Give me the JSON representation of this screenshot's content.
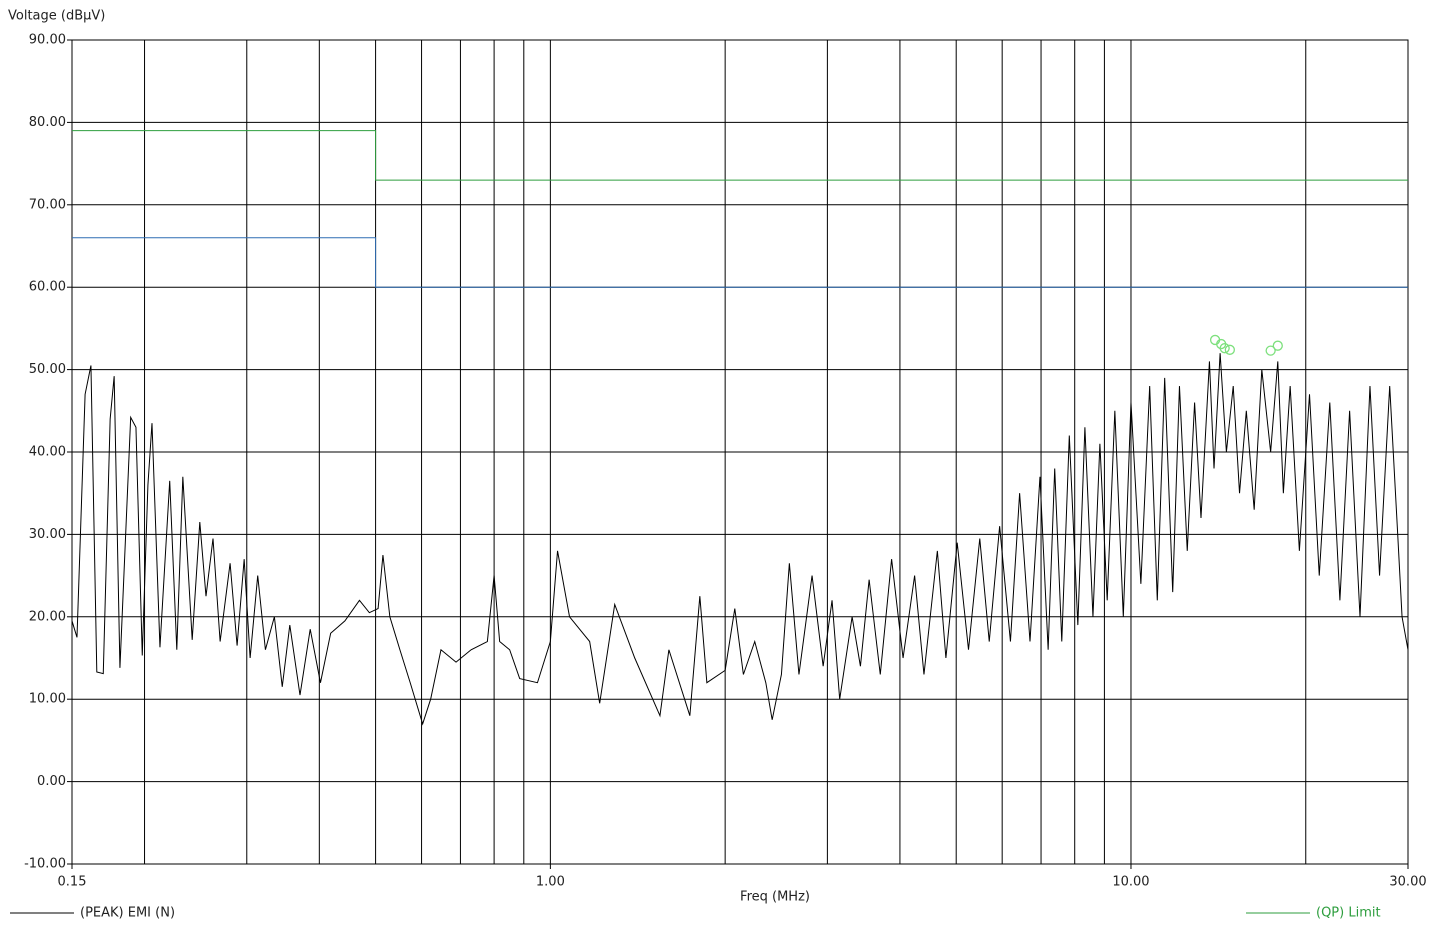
{
  "chart_data": {
    "type": "line",
    "ylabel": "Voltage (dBµV)",
    "xlabel": "Freq (MHz)",
    "xlog": true,
    "grid": true,
    "legend": "bottom",
    "xlim": [
      0.15,
      30
    ],
    "ylim": [
      -10,
      90
    ],
    "xticks": [
      0.15,
      {
        "value": 1,
        "label": "1.00"
      },
      {
        "value": 10,
        "label": "10.00"
      },
      {
        "value": 30,
        "label": "30.00"
      }
    ],
    "xgrid": [
      0.2,
      0.3,
      0.4,
      0.5,
      0.6,
      0.7,
      0.8,
      0.9,
      2,
      3,
      4,
      5,
      6,
      7,
      8,
      9,
      20
    ],
    "yticks": [
      {
        "value": -10,
        "label": "-10.00"
      },
      {
        "value": 0,
        "label": "0.00"
      },
      {
        "value": 10,
        "label": "10.00"
      },
      {
        "value": 20,
        "label": "20.00"
      },
      {
        "value": 30,
        "label": "30.00"
      },
      {
        "value": 40,
        "label": "40.00"
      },
      {
        "value": 50,
        "label": "50.00"
      },
      {
        "value": 60,
        "label": "60.00"
      },
      {
        "value": 70,
        "label": "70.00"
      },
      {
        "value": 80,
        "label": "80.00"
      },
      {
        "value": 90,
        "label": "90.00"
      }
    ],
    "series": [
      {
        "name": "(PEAK) EMI (N)",
        "color": "#000000",
        "x": [
          0.15,
          0.153,
          0.158,
          0.1617,
          0.1655,
          0.1698,
          0.1745,
          0.1773,
          0.1814,
          0.1893,
          0.1933,
          0.1982,
          0.2027,
          0.206,
          0.2126,
          0.221,
          0.2273,
          0.2328,
          0.2416,
          0.249,
          0.2552,
          0.2624,
          0.2699,
          0.2808,
          0.2887,
          0.2969,
          0.304,
          0.3133,
          0.323,
          0.3347,
          0.3453,
          0.3558,
          0.3705,
          0.3858,
          0.4018,
          0.4184,
          0.4427,
          0.469,
          0.4878,
          0.505,
          0.5148,
          0.5291,
          0.5506,
          0.5736,
          0.6026,
          0.622,
          0.648,
          0.6879,
          0.7303,
          0.7789,
          0.8,
          0.8178,
          0.8509,
          0.8854,
          0.95,
          1.0,
          1.0288,
          1.079,
          1.1686,
          1.216,
          1.2907,
          1.3974,
          1.5443,
          1.6,
          1.7387,
          1.809,
          1.86,
          2.0,
          2.078,
          2.15,
          2.249,
          2.35,
          2.41,
          2.5,
          2.58,
          2.68,
          2.823,
          2.95,
          3.056,
          3.15,
          3.309,
          3.42,
          3.54,
          3.7,
          3.87,
          4.05,
          4.24,
          4.4,
          4.64,
          4.8,
          5.02,
          5.25,
          5.49,
          5.7,
          5.94,
          6.2,
          6.43,
          6.7,
          6.97,
          7.2,
          7.39,
          7.6,
          7.83,
          8.1,
          8.33,
          8.6,
          8.84,
          9.1,
          9.38,
          9.7,
          10.0,
          10.4,
          10.77,
          11.1,
          11.43,
          11.8,
          12.12,
          12.5,
          12.87,
          13.2,
          13.65,
          13.9,
          14.24,
          14.6,
          15.0,
          15.38,
          15.8,
          16.3,
          16.8,
          17.4,
          17.9,
          18.3,
          18.8,
          19.5,
          20.3,
          21.1,
          22.0,
          22.9,
          23.8,
          24.8,
          25.8,
          26.8,
          27.9,
          28.8,
          29.3,
          30.0
        ],
        "values": [
          19.5,
          17.5,
          47,
          50.5,
          13.3,
          13.1,
          44,
          49.2,
          13.8,
          44.2,
          43,
          15.3,
          36,
          43.5,
          16.3,
          36.5,
          16,
          37,
          17.2,
          31.5,
          22.5,
          29.5,
          17,
          26.5,
          16.5,
          27,
          15,
          25,
          16,
          20,
          11.5,
          19,
          10.5,
          18.5,
          12,
          18,
          19.5,
          22,
          20.5,
          21,
          27.5,
          20,
          16,
          12,
          7,
          10,
          16,
          14.5,
          16,
          17,
          25,
          17,
          16,
          12.5,
          12,
          17,
          28,
          20,
          17,
          9.5,
          21.5,
          15,
          8,
          16,
          8,
          22.5,
          12,
          13.5,
          21,
          13,
          17,
          12,
          7.5,
          13,
          26.5,
          13,
          25,
          14,
          22,
          10,
          20,
          14,
          24.5,
          13,
          27,
          15,
          25,
          13,
          28,
          15,
          29,
          16,
          29.5,
          17,
          31,
          17,
          35,
          17,
          37,
          16,
          38,
          17,
          42,
          19,
          43,
          20,
          41,
          22,
          45,
          20,
          46,
          24,
          48,
          22,
          49,
          23,
          48,
          28,
          46,
          32,
          51,
          38,
          52,
          40,
          48,
          35,
          45,
          33,
          50,
          40,
          51,
          35,
          48,
          28,
          47,
          25,
          46,
          22,
          45,
          20,
          48,
          25,
          48,
          30,
          20,
          16
        ]
      },
      {
        "name": "(QP) Limit",
        "color": "#2e9e3e",
        "x": [
          0.15,
          0.5,
          0.5,
          30
        ],
        "values": [
          79,
          79,
          73,
          73
        ]
      },
      {
        "color": "#2f6db3",
        "x": [
          0.15,
          0.5,
          0.5,
          30
        ],
        "values": [
          66,
          66,
          60,
          60
        ]
      },
      {
        "type": "scatter",
        "color": "#7de07d",
        "x": [
          13.96,
          14.3,
          14.5,
          14.8,
          17.4,
          17.9
        ],
        "values": [
          53.6,
          53.1,
          52.6,
          52.4,
          52.3,
          52.9
        ]
      }
    ]
  }
}
